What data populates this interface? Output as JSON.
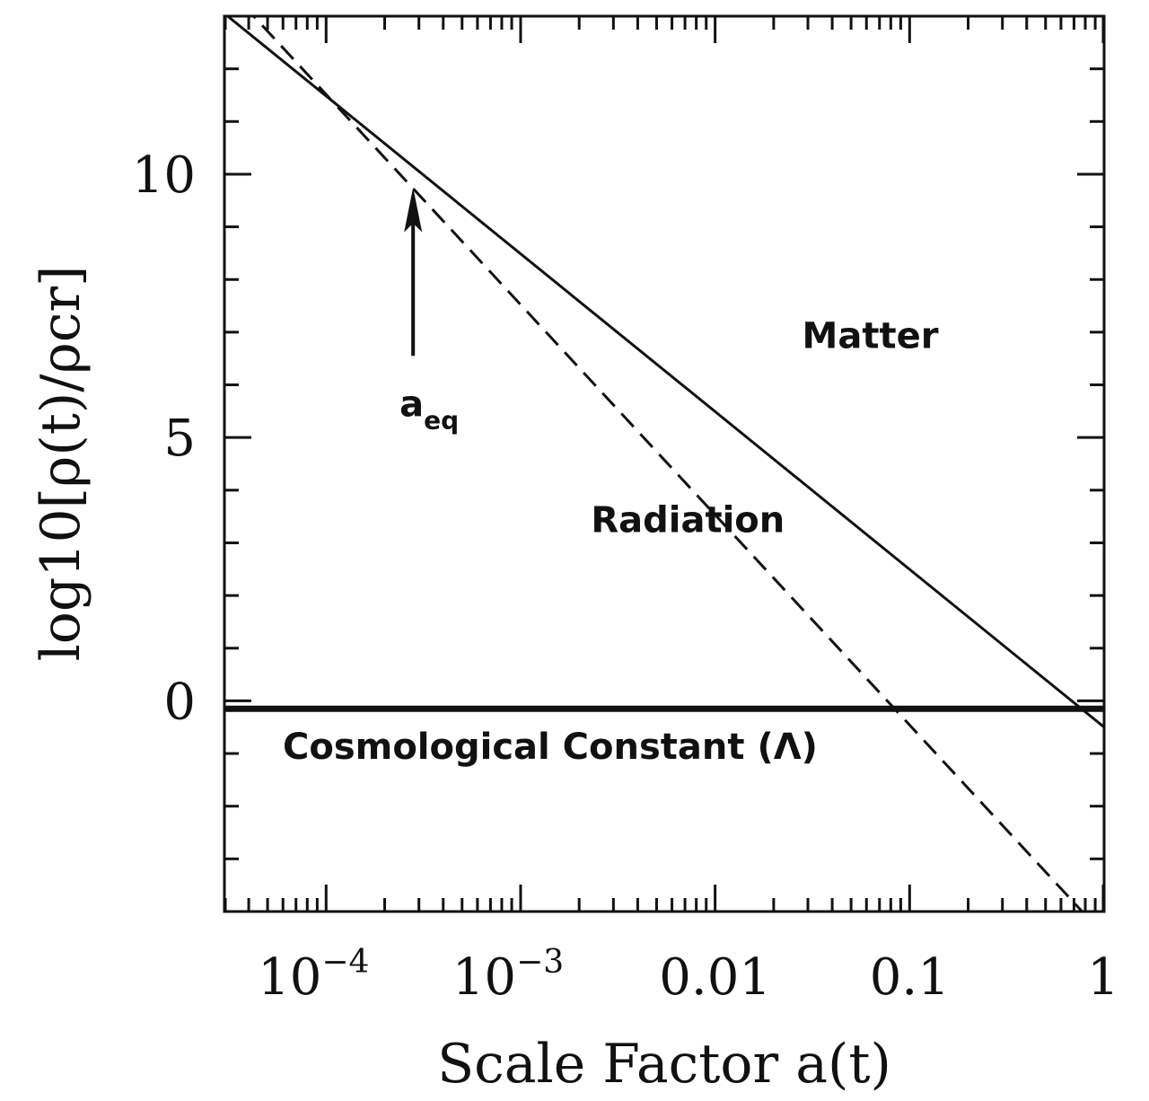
{
  "chart_data": {
    "type": "line",
    "title": "",
    "xlabel": "Scale Factor a(t)",
    "ylabel": "log10[ρ(t)/ρcr]",
    "xscale": "log",
    "xlim": [
      3e-05,
      1
    ],
    "ylim": [
      -4,
      13
    ],
    "grid": false,
    "x_ticks": [
      {
        "value": 0.0001,
        "base": "10",
        "exp": "−4"
      },
      {
        "value": 0.001,
        "base": "10",
        "exp": "−3"
      },
      {
        "value": 0.01,
        "base": "0.01",
        "exp": ""
      },
      {
        "value": 0.1,
        "base": "0.1",
        "exp": ""
      },
      {
        "value": 1,
        "base": "1",
        "exp": ""
      }
    ],
    "y_ticks": [
      {
        "value": 0,
        "label": "0"
      },
      {
        "value": 5,
        "label": "5"
      },
      {
        "value": 10,
        "label": "10"
      }
    ],
    "series": [
      {
        "name": "Matter",
        "style": "solid",
        "x": [
          3e-05,
          1
        ],
        "y": [
          13.05,
          -0.5
        ]
      },
      {
        "name": "Radiation",
        "style": "dashed",
        "x": [
          3e-05,
          1
        ],
        "y": [
          13.6,
          -4.45
        ]
      },
      {
        "name": "Cosmological Constant (Λ)",
        "style": "thick-solid",
        "x": [
          3e-05,
          1
        ],
        "y": [
          -0.15,
          -0.15
        ]
      }
    ],
    "annotations": [
      {
        "id": "matter",
        "text": "Matter",
        "x": 0.028,
        "y": 6.7
      },
      {
        "id": "radiation",
        "text": "Radiation",
        "x": 0.0023,
        "y": 3.2
      },
      {
        "id": "lambda",
        "text": "Cosmological Constant (Λ)",
        "x": 3e-05,
        "y": -1.1
      },
      {
        "id": "aeq",
        "text": "a",
        "sub": "eq",
        "x": 0.00028,
        "y": 5.4
      }
    ],
    "arrow": {
      "x": 0.00028,
      "y_from": 6.55,
      "y_to": 9.75
    }
  }
}
